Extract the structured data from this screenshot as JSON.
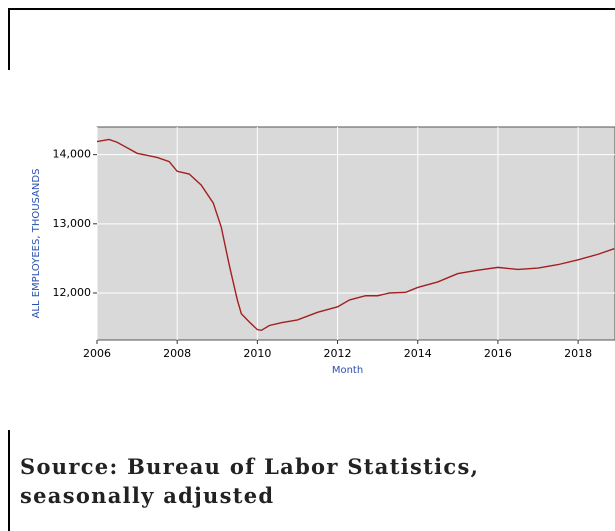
{
  "chart_data": {
    "type": "line",
    "x_label": "Month",
    "y_label": "ALL EMPLOYEES, THOUSANDS",
    "caption": "Source: Bureau of Labor Statistics, seasonally adjusted",
    "x": [
      2006,
      2006.3,
      2006.5,
      2007,
      2007.5,
      2007.8,
      2008,
      2008.3,
      2008.6,
      2008.9,
      2009.1,
      2009.3,
      2009.5,
      2009.6,
      2009.8,
      2010,
      2010.1,
      2010.3,
      2010.6,
      2011,
      2011.5,
      2012,
      2012.3,
      2012.7,
      2013,
      2013.3,
      2013.7,
      2014,
      2014.5,
      2015,
      2015.5,
      2016,
      2016.5,
      2017,
      2017.5,
      2018,
      2018.5,
      2018.9
    ],
    "series": [
      {
        "name": "All employees",
        "color": "#a32020",
        "values": [
          14190,
          14220,
          14180,
          14020,
          13960,
          13900,
          13760,
          13720,
          13560,
          13300,
          12950,
          12400,
          11900,
          11700,
          11580,
          11470,
          11460,
          11530,
          11570,
          11610,
          11720,
          11800,
          11900,
          11960,
          11960,
          12000,
          12010,
          12080,
          12160,
          12280,
          12330,
          12370,
          12340,
          12360,
          12410,
          12480,
          12560,
          12640
        ]
      }
    ],
    "xlim": [
      2006,
      2018.92
    ],
    "ylim": [
      11320,
      14400
    ],
    "xticks": [
      2006,
      2008,
      2010,
      2012,
      2014,
      2016,
      2018
    ],
    "yticks": [
      {
        "value": 12000,
        "label": "12,000"
      },
      {
        "value": 13000,
        "label": "13,000"
      },
      {
        "value": 14000,
        "label": "14,000"
      }
    ],
    "grid": true,
    "background": "#d9d9d9"
  }
}
